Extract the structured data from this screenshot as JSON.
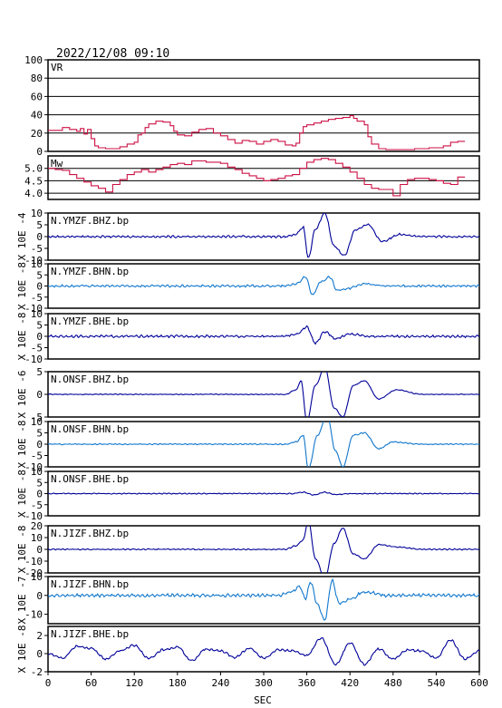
{
  "title": "2022/12/08 09:10",
  "colors": {
    "vr": "#cc1144",
    "dark": "#000099",
    "light": "#1177cc",
    "grid": "#000000"
  },
  "chart_data": {
    "type": "line",
    "xlabel": "SEC",
    "xlim": [
      0,
      600
    ],
    "xticks": [
      0,
      60,
      120,
      180,
      240,
      300,
      360,
      420,
      480,
      540,
      600
    ],
    "panels": [
      {
        "name": "VR",
        "ylim": [
          0,
          100
        ],
        "yticks": [
          0,
          20,
          40,
          60,
          80,
          100
        ],
        "gridlines": [
          20,
          40,
          60,
          80
        ],
        "color": "vr",
        "x": [
          0,
          10,
          20,
          30,
          40,
          45,
          50,
          55,
          60,
          65,
          70,
          80,
          90,
          100,
          110,
          120,
          125,
          130,
          135,
          140,
          150,
          160,
          170,
          175,
          180,
          190,
          200,
          210,
          220,
          230,
          240,
          250,
          260,
          270,
          280,
          290,
          300,
          310,
          320,
          330,
          340,
          345,
          350,
          355,
          360,
          370,
          380,
          390,
          400,
          410,
          420,
          425,
          430,
          440,
          445,
          450,
          460,
          470,
          480,
          490,
          500,
          510,
          520,
          530,
          540,
          550,
          560,
          570,
          580
        ],
        "values": [
          23,
          23,
          26,
          24,
          22,
          25,
          19,
          24,
          14,
          6,
          4,
          3,
          3,
          5,
          8,
          10,
          18,
          20,
          26,
          30,
          33,
          32,
          28,
          22,
          18,
          17,
          21,
          24,
          25,
          20,
          17,
          13,
          9,
          12,
          11,
          8,
          11,
          13,
          11,
          7,
          6,
          9,
          20,
          27,
          29,
          31,
          33,
          35,
          36,
          37,
          39,
          36,
          33,
          29,
          16,
          8,
          3,
          2,
          2,
          2,
          2,
          3,
          3,
          4,
          4,
          6,
          10,
          11,
          11
        ]
      },
      {
        "name": "Mw",
        "ylim": [
          3.75,
          5.5
        ],
        "yticks": [
          4.0,
          4.5,
          5.0
        ],
        "gridlines": [
          4.0,
          4.5,
          5.0,
          5.5
        ],
        "color": "vr",
        "x": [
          0,
          10,
          20,
          30,
          40,
          50,
          60,
          70,
          80,
          90,
          100,
          110,
          120,
          130,
          140,
          150,
          160,
          170,
          180,
          190,
          200,
          210,
          220,
          230,
          240,
          250,
          260,
          270,
          280,
          290,
          300,
          310,
          320,
          330,
          340,
          350,
          360,
          370,
          380,
          390,
          400,
          410,
          420,
          430,
          440,
          450,
          460,
          470,
          480,
          490,
          500,
          510,
          520,
          530,
          540,
          550,
          560,
          570,
          580
        ],
        "values": [
          5.0,
          4.95,
          4.92,
          4.75,
          4.6,
          4.45,
          4.3,
          4.2,
          4.05,
          4.35,
          4.55,
          4.75,
          4.85,
          4.95,
          4.85,
          4.95,
          5.05,
          5.15,
          5.2,
          5.15,
          5.3,
          5.3,
          5.25,
          5.25,
          5.2,
          5.05,
          4.95,
          4.8,
          4.7,
          4.6,
          4.5,
          4.55,
          4.6,
          4.7,
          4.75,
          5.0,
          5.25,
          5.35,
          5.4,
          5.35,
          5.2,
          5.05,
          4.85,
          4.6,
          4.35,
          4.2,
          4.15,
          4.15,
          3.9,
          4.35,
          4.55,
          4.6,
          4.6,
          4.55,
          4.5,
          4.4,
          4.35,
          4.65,
          4.65
        ]
      },
      {
        "name": "N.YMZF.BHZ.bp",
        "ylim": [
          -10,
          10
        ],
        "yticks": [
          -10,
          -5,
          0,
          5,
          10
        ],
        "color": "dark",
        "amp": 9.5,
        "noise": 0.5,
        "unit": "X 10E -4",
        "x": [
          0,
          330,
          345,
          355,
          362,
          372,
          385,
          398,
          412,
          428,
          445,
          465,
          490,
          520,
          600
        ],
        "values": [
          0,
          0,
          1,
          4,
          -9,
          3,
          10,
          -4,
          -8,
          3,
          5,
          -2,
          1,
          0,
          0
        ]
      },
      {
        "name": "N.YMZF.BHN.bp",
        "ylim": [
          -10,
          10
        ],
        "yticks": [
          -10,
          -5,
          0,
          5,
          10
        ],
        "color": "light",
        "amp": 4.5,
        "noise": 0.6,
        "unit": "X 10E -8",
        "x": [
          0,
          330,
          345,
          358,
          368,
          380,
          392,
          402,
          418,
          440,
          470,
          600
        ],
        "values": [
          0,
          0,
          1,
          4,
          -4,
          2,
          4,
          -2,
          -1,
          1,
          0,
          0
        ]
      },
      {
        "name": "N.YMZF.BHE.bp",
        "ylim": [
          -10,
          10
        ],
        "yticks": [
          -10,
          -5,
          0,
          5,
          10
        ],
        "color": "dark",
        "amp": 3.5,
        "noise": 0.6,
        "unit": "X 10E -8",
        "x": [
          0,
          330,
          345,
          360,
          372,
          385,
          400,
          420,
          450,
          600
        ],
        "values": [
          0,
          0,
          1,
          4,
          -3,
          2,
          -1,
          1,
          0,
          0
        ]
      },
      {
        "name": "N.ONSF.BHZ.bp",
        "ylim": [
          -5,
          5
        ],
        "yticks": [
          -5,
          0,
          5
        ],
        "color": "dark",
        "amp": 5.5,
        "noise": 0.1,
        "unit": "X 10E -6",
        "x": [
          0,
          330,
          345,
          352,
          360,
          372,
          385,
          398,
          410,
          425,
          440,
          460,
          485,
          520,
          600
        ],
        "values": [
          0,
          0,
          1,
          3,
          -6,
          2,
          6,
          -3,
          -5,
          2,
          3,
          -1,
          1,
          0,
          0
        ]
      },
      {
        "name": "N.ONSF.BHN.bp",
        "ylim": [
          -10,
          10
        ],
        "yticks": [
          -10,
          -5,
          0,
          5,
          10
        ],
        "color": "light",
        "amp": 11,
        "noise": 0.3,
        "unit": "X 10E -8",
        "x": [
          0,
          330,
          345,
          355,
          362,
          375,
          388,
          400,
          410,
          425,
          440,
          460,
          480,
          520,
          600
        ],
        "values": [
          0,
          0,
          1,
          4,
          -11,
          4,
          13,
          -3,
          -10,
          4,
          5,
          -2,
          1,
          0,
          0
        ]
      },
      {
        "name": "N.ONSF.BHE.bp",
        "ylim": [
          -10,
          10
        ],
        "yticks": [
          -10,
          -5,
          0,
          5,
          10
        ],
        "color": "dark",
        "amp": 0.8,
        "noise": 0.25,
        "unit": "X 10E -8",
        "x": [
          0,
          340,
          355,
          370,
          385,
          400,
          420,
          600
        ],
        "values": [
          0,
          0,
          0.6,
          -0.6,
          0.6,
          -0.5,
          0,
          0
        ]
      },
      {
        "name": "N.JIZF.BHZ.bp",
        "ylim": [
          -20,
          20
        ],
        "yticks": [
          -20,
          -10,
          0,
          10,
          20
        ],
        "color": "dark",
        "amp": 25,
        "noise": 0.6,
        "unit": "X 10E -8",
        "x": [
          0,
          330,
          345,
          355,
          362,
          372,
          385,
          398,
          410,
          425,
          440,
          460,
          485,
          520,
          600
        ],
        "values": [
          0,
          0,
          3,
          8,
          25,
          -8,
          -25,
          5,
          18,
          -4,
          -8,
          4,
          2,
          0,
          0
        ]
      },
      {
        "name": "N.JIZF.BHN.bp",
        "ylim": [
          -15,
          10
        ],
        "yticks": [
          -10,
          0,
          10
        ],
        "color": "light",
        "amp": 12,
        "noise": 1,
        "unit": "X 10E -7",
        "x": [
          0,
          320,
          340,
          350,
          358,
          365,
          375,
          385,
          395,
          405,
          420,
          440,
          470,
          600
        ],
        "values": [
          0,
          0,
          2,
          5,
          -2,
          7,
          -5,
          -13,
          8,
          -4,
          -2,
          2,
          0,
          0
        ]
      },
      {
        "name": "N.JIZF.BHE.bp",
        "ylim": [
          -2,
          3
        ],
        "yticks": [
          -2,
          0,
          2
        ],
        "color": "dark",
        "amp": 1.8,
        "noise": 0.15,
        "unit": "X 10E -8",
        "x": [
          0,
          20,
          40,
          60,
          80,
          100,
          120,
          140,
          160,
          180,
          200,
          220,
          240,
          260,
          280,
          300,
          320,
          340,
          360,
          380,
          400,
          420,
          440,
          460,
          480,
          500,
          520,
          540,
          560,
          580,
          600
        ],
        "values": [
          0,
          -0.5,
          0.8,
          0.6,
          -0.6,
          0.3,
          0.9,
          -0.5,
          0.4,
          0.7,
          -0.8,
          0.5,
          0.3,
          -0.4,
          0.6,
          -0.5,
          0.4,
          0.3,
          -0.2,
          1.7,
          -1.2,
          1.2,
          -1.2,
          0.5,
          -0.6,
          0.4,
          0.3,
          -0.5,
          1.5,
          -0.6,
          0.3
        ]
      }
    ]
  }
}
